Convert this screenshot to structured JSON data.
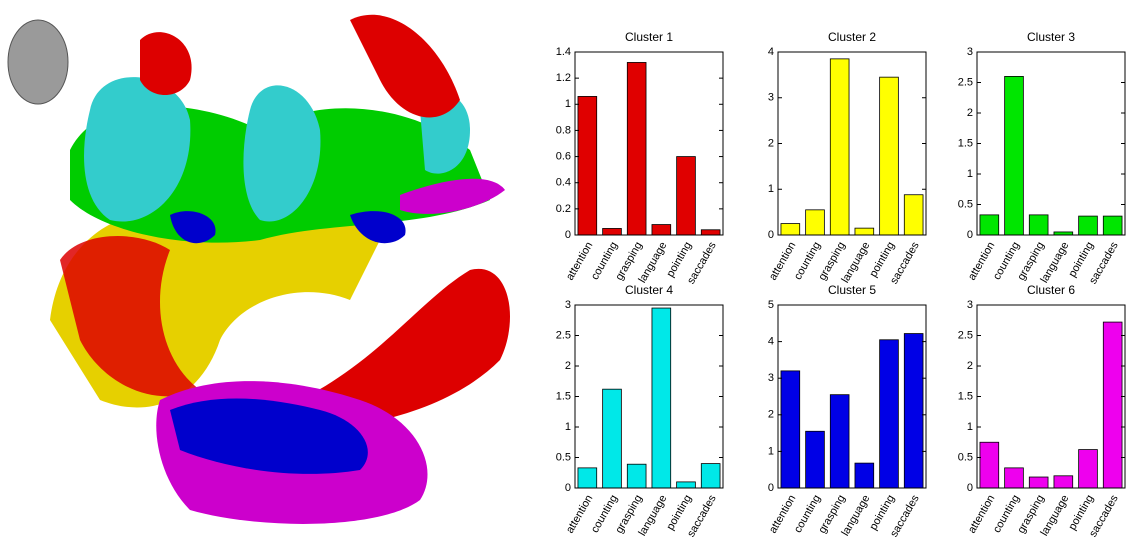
{
  "chart_data": [
    {
      "type": "bar",
      "title": "Cluster 1",
      "categories": [
        "attention",
        "counting",
        "grasping",
        "language",
        "pointing",
        "saccades"
      ],
      "values": [
        1.06,
        0.05,
        1.32,
        0.08,
        0.6,
        0.04
      ],
      "color": "#e00000",
      "ylim": [
        0,
        1.4
      ],
      "yticks": [
        0,
        0.2,
        0.4,
        0.6,
        0.8,
        1,
        1.2,
        1.4
      ]
    },
    {
      "type": "bar",
      "title": "Cluster 2",
      "categories": [
        "attention",
        "counting",
        "grasping",
        "language",
        "pointing",
        "saccades"
      ],
      "values": [
        0.25,
        0.55,
        3.85,
        0.15,
        3.45,
        0.88
      ],
      "color": "#ffff00",
      "ylim": [
        0,
        4
      ],
      "yticks": [
        0,
        1,
        2,
        3,
        4
      ]
    },
    {
      "type": "bar",
      "title": "Cluster 3",
      "categories": [
        "attention",
        "counting",
        "grasping",
        "language",
        "pointing",
        "saccades"
      ],
      "values": [
        0.33,
        2.6,
        0.33,
        0.05,
        0.31,
        0.31
      ],
      "color": "#00e600",
      "ylim": [
        0,
        3
      ],
      "yticks": [
        0,
        0.5,
        1,
        1.5,
        2,
        2.5,
        3
      ]
    },
    {
      "type": "bar",
      "title": "Cluster 4",
      "categories": [
        "attention",
        "counting",
        "grasping",
        "language",
        "pointing",
        "saccades"
      ],
      "values": [
        0.33,
        1.62,
        0.39,
        2.95,
        0.1,
        0.4
      ],
      "color": "#00e8e8",
      "ylim": [
        0,
        3
      ],
      "yticks": [
        0,
        0.5,
        1,
        1.5,
        2,
        2.5,
        3
      ]
    },
    {
      "type": "bar",
      "title": "Cluster 5",
      "categories": [
        "attention",
        "counting",
        "grasping",
        "language",
        "pointing",
        "saccades"
      ],
      "values": [
        3.2,
        1.55,
        2.55,
        0.68,
        4.05,
        4.22
      ],
      "color": "#0000e6",
      "ylim": [
        0,
        5
      ],
      "yticks": [
        0,
        1,
        2,
        3,
        4,
        5
      ]
    },
    {
      "type": "bar",
      "title": "Cluster 6",
      "categories": [
        "attention",
        "counting",
        "grasping",
        "language",
        "pointing",
        "saccades"
      ],
      "values": [
        0.75,
        0.33,
        0.18,
        0.2,
        0.63,
        2.72
      ],
      "color": "#ee00ee",
      "ylim": [
        0,
        3
      ],
      "yticks": [
        0,
        0.5,
        1,
        1.5,
        2,
        2.5,
        3
      ]
    }
  ]
}
